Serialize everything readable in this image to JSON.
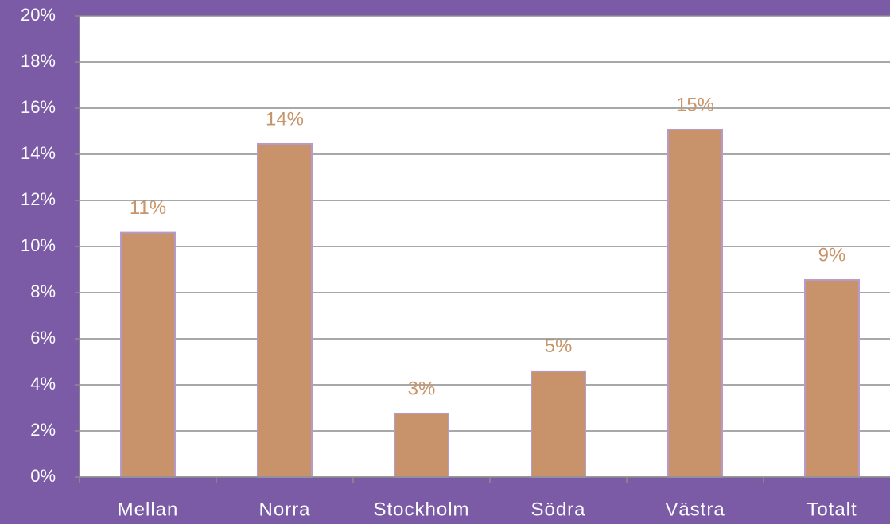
{
  "chart_data": {
    "type": "bar",
    "categories": [
      "Mellan",
      "Norra",
      "Stockholm",
      "Södra",
      "Västra",
      "Totalt"
    ],
    "values": [
      10.6,
      14.45,
      2.76,
      4.59,
      15.07,
      8.55
    ],
    "value_labels": [
      "11%",
      "14%",
      "3%",
      "5%",
      "15%",
      "9%"
    ],
    "color": "#c8936a",
    "ylim": [
      0,
      20
    ],
    "yticks": [
      {
        "value": 0,
        "label": "0%"
      },
      {
        "value": 2,
        "label": "2%"
      },
      {
        "value": 4,
        "label": "4%"
      },
      {
        "value": 6,
        "label": "6%"
      },
      {
        "value": 8,
        "label": "8%"
      },
      {
        "value": 10,
        "label": "10%"
      },
      {
        "value": 12,
        "label": "12%"
      },
      {
        "value": 14,
        "label": "14%"
      },
      {
        "value": 16,
        "label": "16%"
      },
      {
        "value": 18,
        "label": "18%"
      },
      {
        "value": 20,
        "label": "20%"
      }
    ],
    "grid": true
  }
}
